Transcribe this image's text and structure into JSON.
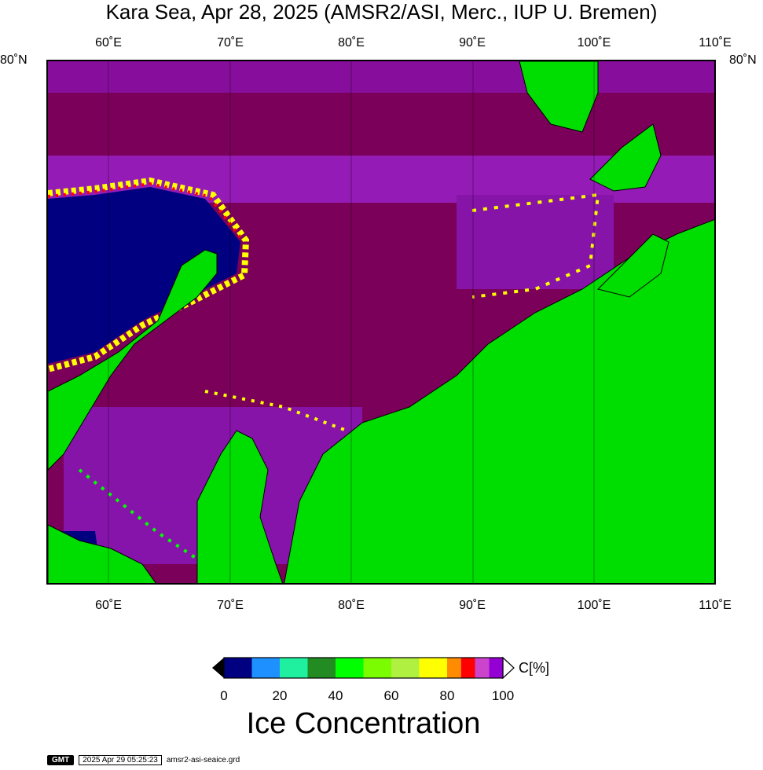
{
  "title": "Kara Sea, Apr 28, 2025 (AMSR2/ASI, Merc., IUP U. Bremen)",
  "axis": {
    "lon_labels": [
      "60˚E",
      "70˚E",
      "80˚E",
      "90˚E",
      "100˚E",
      "110˚E"
    ],
    "lat_label_left": "80˚N",
    "lat_label_right": "80˚N"
  },
  "colors": {
    "land": "#00dd00",
    "ice_100": "#7b0059",
    "open_water": "#000080",
    "coast": "#000000"
  },
  "colorbar": {
    "bins": [
      "#000080",
      "#1e90ff",
      "#1ef0a0",
      "#228b22",
      "#00ff00",
      "#7cfc00",
      "#b0f040",
      "#ffff00",
      "#ff8c00",
      "#ff0000",
      "#cc44cc",
      "#9400d3"
    ],
    "tick_labels": [
      "0",
      "20",
      "40",
      "60",
      "80",
      "100"
    ],
    "unit": "C[%]",
    "title": "Ice Concentration"
  },
  "footer": {
    "logo": "GMT",
    "timestamp": "2025 Apr 29 05:25:23",
    "filename": "amsr2-asi-seaice.grd"
  }
}
